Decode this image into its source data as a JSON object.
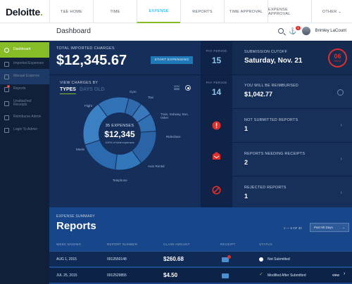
{
  "brand": {
    "name": "Deloitte",
    "dot": "."
  },
  "nav": [
    {
      "label": "T&E HOME"
    },
    {
      "label": "TIME"
    },
    {
      "label": "EXPENSE"
    },
    {
      "label": "REPORTS"
    },
    {
      "label": "TIME APPROVAL"
    },
    {
      "label": "EXPENSE APPROVAL"
    },
    {
      "label": "OTHER ⌄"
    }
  ],
  "header": {
    "title": "Dashboard",
    "notification_count": "1",
    "user_name": "Brimley LaCount"
  },
  "sidebar": {
    "items": [
      {
        "label": "Dashboard"
      },
      {
        "label": "Imported Expenses"
      },
      {
        "label": "Manual Expense"
      },
      {
        "label": "Reports",
        "badge": "1"
      },
      {
        "label": "Unattached Receipts"
      },
      {
        "label": "Reimburse Admin"
      },
      {
        "label": "Login To Admin"
      }
    ]
  },
  "summary": {
    "total_label": "TOTAL IMPORTED CHARGES",
    "total_amount": "$12,345.67",
    "start_button": "START EXPENSING",
    "view_label": "VIEW CHARGES BY",
    "tab_types": "TYPES",
    "tab_days": "DAYS OLD",
    "center_count": "35 EXPENSES",
    "center_amount": "$12,345",
    "center_sub": "100% of total expenses",
    "segments": [
      "Gym",
      "Taxi",
      "Train, Subway, Bus, Other",
      "Rideshare",
      "Auto Rental",
      "Telephone",
      "Meals",
      "Flight"
    ]
  },
  "pay_period": {
    "blocks": [
      {
        "label": "PAY PERIOD",
        "value": "15"
      },
      {
        "label": "PAY PERIOD",
        "value": "14"
      }
    ]
  },
  "cards": {
    "cutoff_title": "SUBMISSION CUTOFF",
    "cutoff_value": "Saturday, Nov. 21",
    "days_num": "06",
    "days_txt": "DAYS",
    "reimbursed_title": "YOU WILL BE REIMBURSED",
    "reimbursed_value": "$1,042.77",
    "not_submitted_title": "NOT SUBMITTED REPORTS",
    "not_submitted_value": "1",
    "needing_title": "REPORTS NEEDING RECEIPTS",
    "needing_value": "2",
    "rejected_title": "REJECTED REPORTS",
    "rejected_value": "1"
  },
  "reports": {
    "summary_label": "EXPENSE SUMMARY",
    "title": "Reports",
    "pager": "1 — 5 OF 30",
    "filter": "Past 90 Days",
    "columns": [
      "WEEK ENDING",
      "REPORT NUMBER",
      "CLAIM AMOUNT",
      "RECEIPT",
      "STATUS"
    ],
    "rows": [
      {
        "week": "AUG 1, 2015",
        "number": "0012550148",
        "amount": "$260.68",
        "status": "Not Submitted",
        "view": ""
      },
      {
        "week": "JUL 25, 2015",
        "number": "0012529855",
        "amount": "$4.50",
        "status": "Modified After Submitted",
        "view": "view"
      }
    ]
  },
  "colors": {
    "accent_green": "#86bc25",
    "alert_red": "#e0302b",
    "link_blue": "#00a3e0"
  }
}
